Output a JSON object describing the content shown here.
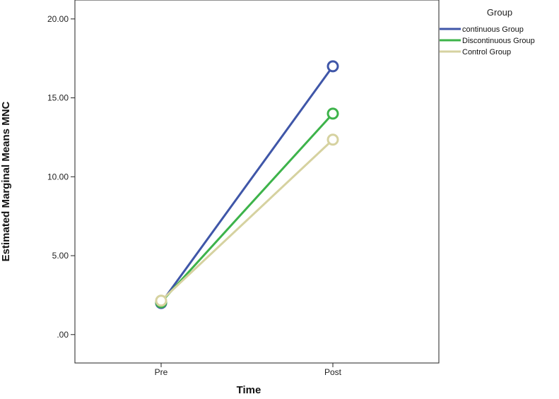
{
  "chart_data": {
    "type": "line",
    "xlabel": "Time",
    "ylabel": "Estimated Marginal Means MNC",
    "categories": [
      "Pre",
      "Post"
    ],
    "ylim": [
      -1.8,
      21.2
    ],
    "yticks": [
      0,
      5,
      10,
      15,
      20
    ],
    "ytick_labels": [
      ".00",
      "5.00",
      "10.00",
      "15.00",
      "20.00"
    ],
    "grid": false,
    "markers": "open-circle",
    "legend": {
      "title": "Group",
      "placement": "right"
    },
    "series": [
      {
        "name": "continuous Group",
        "values": [
          2.0,
          17.0
        ],
        "color": "#3f56a8"
      },
      {
        "name": "Discontinuous Group",
        "values": [
          2.05,
          14.0
        ],
        "color": "#3db34a"
      },
      {
        "name": "Control Group",
        "values": [
          2.15,
          12.35
        ],
        "color": "#d6d2a0"
      }
    ]
  }
}
